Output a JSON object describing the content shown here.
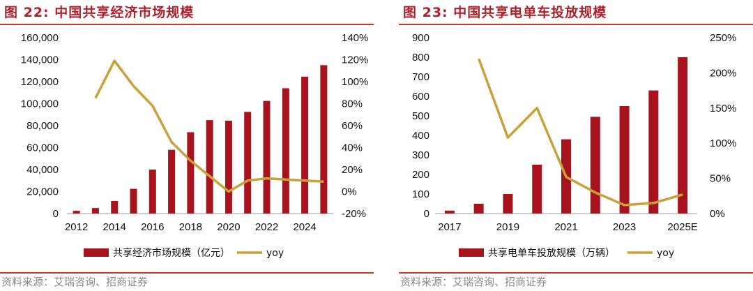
{
  "colors": {
    "bar": "#a8141e",
    "line": "#c9a13b",
    "title": "#b0202b",
    "rule": "#c0392b",
    "source": "#888888"
  },
  "chart_data": [
    {
      "type": "bar",
      "figure_title": "图 22:  中国共享经济市场规模",
      "source": "资料来源：艾瑞咨询、招商证券",
      "legend_position": "bottom",
      "x": [
        2012,
        2013,
        2014,
        2015,
        2016,
        2017,
        2018,
        2019,
        2020,
        2021,
        2022,
        2023,
        2024,
        2025
      ],
      "x_tick_labels": [
        "2012",
        "2014",
        "2016",
        "2018",
        "2020",
        "2022",
        "2024"
      ],
      "x_tick_values": [
        2012,
        2014,
        2016,
        2018,
        2020,
        2022,
        2024
      ],
      "series": [
        {
          "name": "共享经济市场规模（亿元）",
          "type": "bar",
          "axis": "left",
          "values": [
            2500,
            5000,
            11500,
            22500,
            40000,
            58000,
            74000,
            85000,
            84500,
            92500,
            102500,
            114000,
            124500,
            135000
          ]
        },
        {
          "name": "yoy",
          "type": "line",
          "axis": "right",
          "values": [
            null,
            85,
            119,
            96,
            78,
            45,
            28,
            14,
            0,
            10,
            12,
            11,
            10,
            9
          ]
        }
      ],
      "y_left": {
        "lim": [
          0,
          160000
        ],
        "ticks": [
          0,
          20000,
          40000,
          60000,
          80000,
          100000,
          120000,
          140000,
          160000
        ],
        "tick_labels": [
          "0",
          "20,000",
          "40,000",
          "60,000",
          "80,000",
          "100,000",
          "120,000",
          "140,000",
          "160,000"
        ]
      },
      "y_right": {
        "lim": [
          -20,
          140
        ],
        "ticks": [
          -20,
          0,
          20,
          40,
          60,
          80,
          100,
          120,
          140
        ],
        "tick_labels": [
          "-20%",
          "0%",
          "20%",
          "40%",
          "60%",
          "80%",
          "100%",
          "120%",
          "140%"
        ]
      }
    },
    {
      "type": "bar",
      "figure_title": "图 23:  中国共享电单车投放规模",
      "source": "资料来源：艾瑞咨询、招商证券",
      "legend_position": "bottom",
      "x": [
        "2017",
        "2018",
        "2019",
        "2020",
        "2021",
        "2022",
        "2023",
        "2024",
        "2025E"
      ],
      "x_tick_labels": [
        "2017",
        "2019",
        "2021",
        "2023",
        "2025E"
      ],
      "x_tick_values": [
        "2017",
        "2019",
        "2021",
        "2023",
        "2025E"
      ],
      "series": [
        {
          "name": "共享电单车投放规模（万辆）",
          "type": "bar",
          "axis": "left",
          "values": [
            15,
            50,
            100,
            250,
            380,
            495,
            550,
            630,
            800
          ]
        },
        {
          "name": "yoy",
          "type": "line",
          "axis": "right",
          "values": [
            null,
            220,
            108,
            150,
            52,
            30,
            12,
            15,
            27
          ]
        }
      ],
      "y_left": {
        "lim": [
          0,
          900
        ],
        "ticks": [
          0,
          100,
          200,
          300,
          400,
          500,
          600,
          700,
          800,
          900
        ],
        "tick_labels": [
          "0",
          "100",
          "200",
          "300",
          "400",
          "500",
          "600",
          "700",
          "800",
          "900"
        ]
      },
      "y_right": {
        "lim": [
          0,
          250
        ],
        "ticks": [
          0,
          50,
          100,
          150,
          200,
          250
        ],
        "tick_labels": [
          "0%",
          "50%",
          "100%",
          "150%",
          "200%",
          "250%"
        ]
      }
    }
  ]
}
